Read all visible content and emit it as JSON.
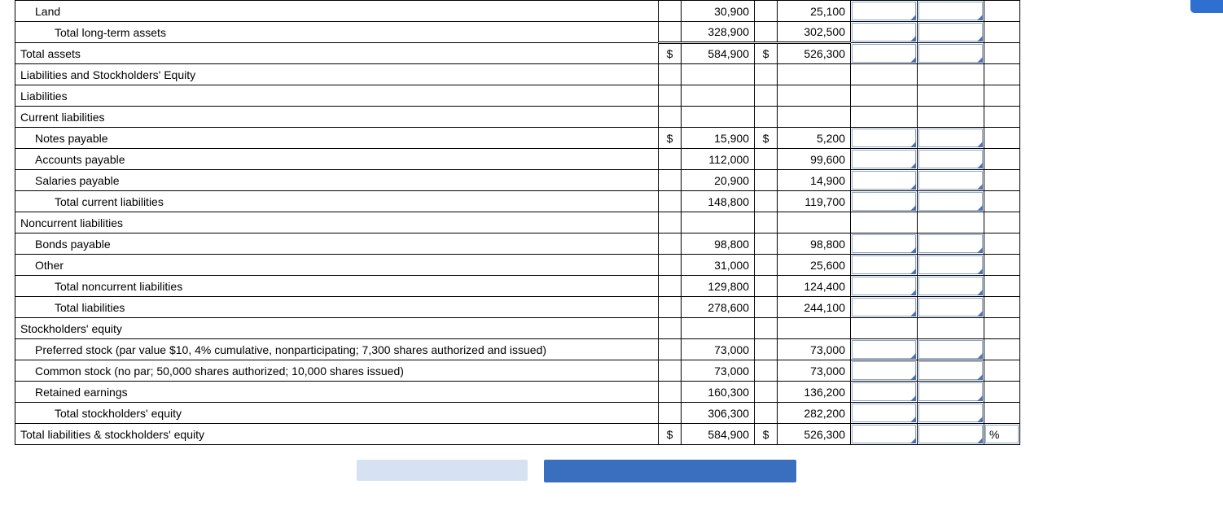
{
  "rows": [
    {
      "label": "Land",
      "indent": 1,
      "sym1": "",
      "v1": "30,900",
      "sym2": "",
      "v2": "25,100",
      "in": true,
      "pct": ""
    },
    {
      "label": "Total long-term assets",
      "indent": 2,
      "sym1": "",
      "v1": "328,900",
      "sym2": "",
      "v2": "302,500",
      "in": true,
      "pct": ""
    },
    {
      "label": "Total assets",
      "indent": 0,
      "sym1": "$",
      "v1": "584,900",
      "sym2": "$",
      "v2": "526,300",
      "in": true,
      "dbl": true,
      "pct": ""
    },
    {
      "label": "Liabilities and Stockholders' Equity",
      "indent": 0,
      "sym1": "",
      "v1": "",
      "sym2": "",
      "v2": "",
      "in": false,
      "pct": ""
    },
    {
      "label": "Liabilities",
      "indent": 0,
      "sym1": "",
      "v1": "",
      "sym2": "",
      "v2": "",
      "in": false,
      "pct": ""
    },
    {
      "label": "Current liabilities",
      "indent": 0,
      "sym1": "",
      "v1": "",
      "sym2": "",
      "v2": "",
      "in": false,
      "pct": ""
    },
    {
      "label": "Notes payable",
      "indent": 1,
      "sym1": "$",
      "v1": "15,900",
      "sym2": "$",
      "v2": "5,200",
      "in": true,
      "pct": ""
    },
    {
      "label": "Accounts payable",
      "indent": 1,
      "sym1": "",
      "v1": "112,000",
      "sym2": "",
      "v2": "99,600",
      "in": true,
      "pct": ""
    },
    {
      "label": "Salaries payable",
      "indent": 1,
      "sym1": "",
      "v1": "20,900",
      "sym2": "",
      "v2": "14,900",
      "in": true,
      "pct": ""
    },
    {
      "label": "Total current liabilities",
      "indent": 2,
      "sym1": "",
      "v1": "148,800",
      "sym2": "",
      "v2": "119,700",
      "in": true,
      "pct": ""
    },
    {
      "label": "Noncurrent liabilities",
      "indent": 0,
      "sym1": "",
      "v1": "",
      "sym2": "",
      "v2": "",
      "in": false,
      "pct": ""
    },
    {
      "label": "Bonds payable",
      "indent": 1,
      "sym1": "",
      "v1": "98,800",
      "sym2": "",
      "v2": "98,800",
      "in": true,
      "pct": ""
    },
    {
      "label": "Other",
      "indent": 1,
      "sym1": "",
      "v1": "31,000",
      "sym2": "",
      "v2": "25,600",
      "in": true,
      "pct": ""
    },
    {
      "label": "Total noncurrent liabilities",
      "indent": 2,
      "sym1": "",
      "v1": "129,800",
      "sym2": "",
      "v2": "124,400",
      "in": true,
      "pct": ""
    },
    {
      "label": "Total liabilities",
      "indent": 2,
      "sym1": "",
      "v1": "278,600",
      "sym2": "",
      "v2": "244,100",
      "in": true,
      "pct": ""
    },
    {
      "label": "Stockholders' equity",
      "indent": 0,
      "sym1": "",
      "v1": "",
      "sym2": "",
      "v2": "",
      "in": false,
      "pct": ""
    },
    {
      "label": "Preferred stock (par value $10, 4% cumulative, nonparticipating; 7,300 shares authorized and issued)",
      "indent": 1,
      "sym1": "",
      "v1": "73,000",
      "sym2": "",
      "v2": "73,000",
      "in": true,
      "pct": ""
    },
    {
      "label": "Common stock (no par; 50,000 shares authorized; 10,000 shares issued)",
      "indent": 1,
      "sym1": "",
      "v1": "73,000",
      "sym2": "",
      "v2": "73,000",
      "in": true,
      "pct": ""
    },
    {
      "label": "Retained earnings",
      "indent": 1,
      "sym1": "",
      "v1": "160,300",
      "sym2": "",
      "v2": "136,200",
      "in": true,
      "pct": ""
    },
    {
      "label": "Total stockholders' equity",
      "indent": 2,
      "sym1": "",
      "v1": "306,300",
      "sym2": "",
      "v2": "282,200",
      "in": true,
      "pct": ""
    },
    {
      "label": "Total liabilities & stockholders' equity",
      "indent": 0,
      "sym1": "$",
      "v1": "584,900",
      "sym2": "$",
      "v2": "526,300",
      "in": true,
      "pct": "%"
    }
  ],
  "colors": {
    "input_border": "#8ca6c9",
    "triangle": "#4a73b0",
    "pill": "#2f6fd0",
    "bar_light": "#d6e2f2",
    "bar_dark": "#3a6fbf"
  }
}
